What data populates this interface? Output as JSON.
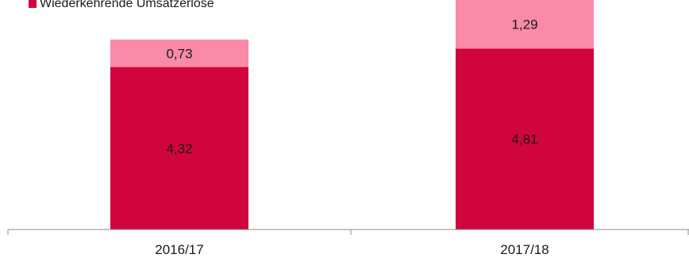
{
  "chart_data": {
    "type": "bar",
    "stacked": true,
    "categories": [
      "2016/17",
      "2017/18"
    ],
    "series": [
      {
        "name": "Wiederkehrende Umsatzerlöse",
        "color": "#d0053c",
        "values": [
          4.32,
          4.81
        ],
        "labels": [
          "4,32",
          "4,81"
        ]
      },
      {
        "name": "",
        "color": "#f98aa8",
        "values": [
          0.73,
          1.29
        ],
        "labels": [
          "0,73",
          "1,29"
        ]
      }
    ],
    "legend_position": "top-left",
    "grid": false,
    "ylim": [
      0,
      6.1
    ]
  }
}
